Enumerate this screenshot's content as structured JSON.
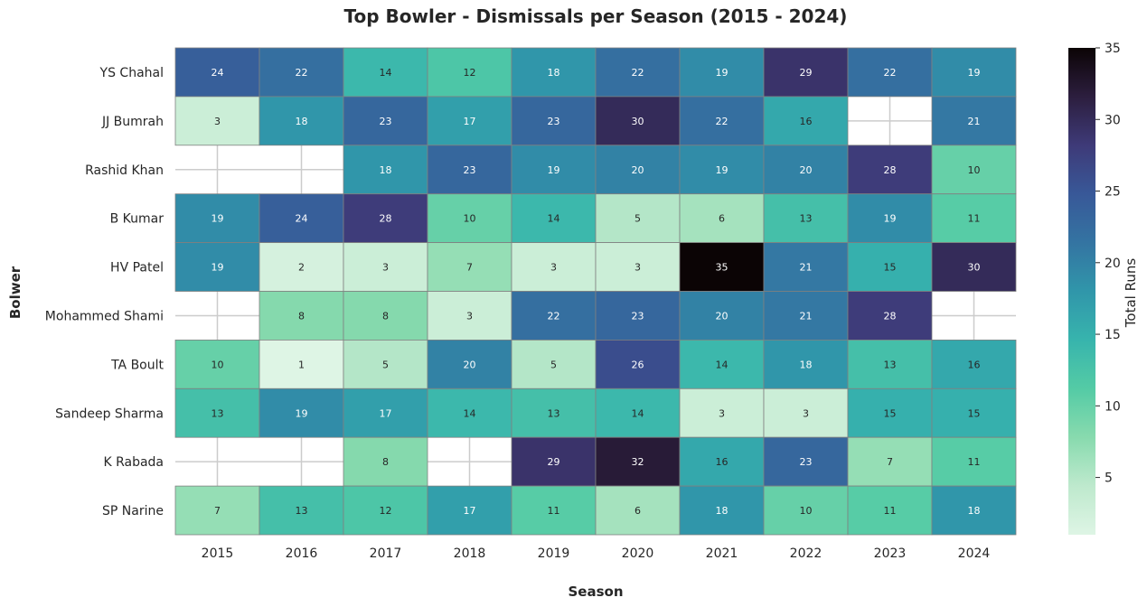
{
  "chart_data": {
    "type": "heatmap",
    "title": "Top Bowler - Dismissals per Season (2015 - 2024)",
    "xlabel": "Season",
    "ylabel": "Bolwer",
    "colorbar_label": "Total Runs",
    "colorbar_ticks": [
      5,
      10,
      15,
      20,
      25,
      30,
      35
    ],
    "colorbar_range": [
      1,
      35
    ],
    "colormap": "mako_r",
    "grid": true,
    "x": [
      "2015",
      "2016",
      "2017",
      "2018",
      "2019",
      "2020",
      "2021",
      "2022",
      "2023",
      "2024"
    ],
    "y": [
      "YS Chahal",
      "JJ Bumrah",
      "Rashid Khan",
      "B Kumar",
      "HV Patel",
      "Mohammed Shami",
      "TA Boult",
      "Sandeep Sharma",
      "K Rabada",
      "SP Narine"
    ],
    "values": [
      [
        24,
        22,
        14,
        12,
        18,
        22,
        19,
        29,
        22,
        19
      ],
      [
        3,
        18,
        23,
        17,
        23,
        30,
        22,
        16,
        null,
        21
      ],
      [
        null,
        null,
        18,
        23,
        19,
        20,
        19,
        20,
        28,
        10
      ],
      [
        19,
        24,
        28,
        10,
        14,
        5,
        6,
        13,
        19,
        11
      ],
      [
        19,
        2,
        3,
        7,
        3,
        3,
        35,
        21,
        15,
        30
      ],
      [
        null,
        8,
        8,
        3,
        22,
        23,
        20,
        21,
        28,
        null
      ],
      [
        10,
        1,
        5,
        20,
        5,
        26,
        14,
        18,
        13,
        16
      ],
      [
        13,
        19,
        17,
        14,
        13,
        14,
        3,
        3,
        15,
        15
      ],
      [
        null,
        null,
        8,
        null,
        29,
        32,
        16,
        23,
        7,
        11
      ],
      [
        7,
        13,
        12,
        17,
        11,
        6,
        18,
        10,
        11,
        18
      ]
    ]
  }
}
